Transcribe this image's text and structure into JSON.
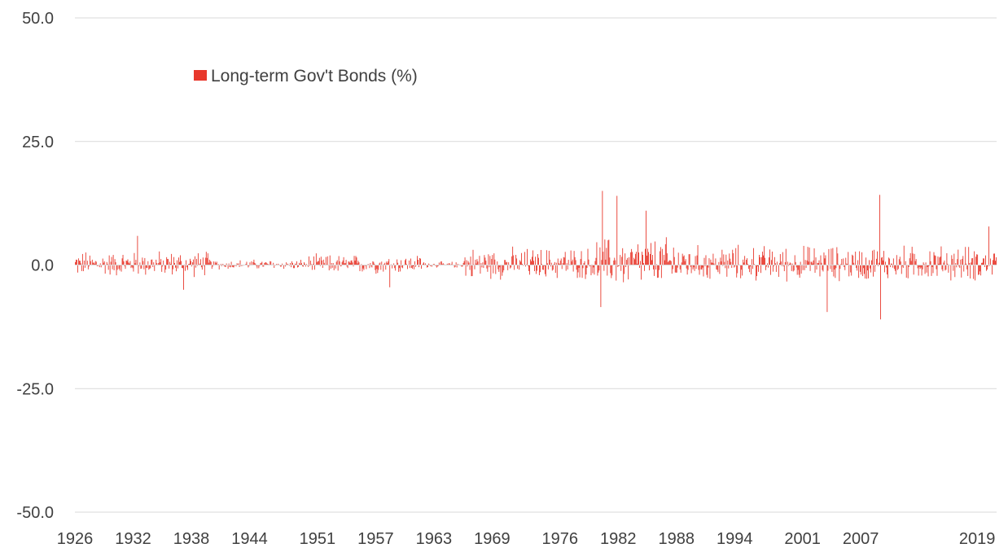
{
  "chart_data": {
    "type": "bar",
    "title": "",
    "xlabel": "",
    "ylabel": "",
    "ylim": [
      -50,
      50
    ],
    "y_ticks": [
      "50.0",
      "25.0",
      "0.0",
      "-25.0",
      "-50.0"
    ],
    "y_tick_values": [
      50,
      25,
      0,
      -25,
      -50
    ],
    "x_range": [
      1926,
      2021
    ],
    "x_ticks": [
      "1926",
      "1932",
      "1938",
      "1944",
      "1951",
      "1957",
      "1963",
      "1969",
      "1976",
      "1982",
      "1988",
      "1994",
      "2001",
      "2007",
      "2019"
    ],
    "x_tick_values": [
      1926,
      1932,
      1938,
      1944,
      1951,
      1957,
      1963,
      1969,
      1976,
      1982,
      1988,
      1994,
      2001,
      2007,
      2019
    ],
    "grid": true,
    "legend_position": "top-left",
    "bar_color": "#e8382c",
    "series": [
      {
        "name": "Long-term Gov't Bonds (%)",
        "frequency": "monthly",
        "start": "1926-01",
        "notable_values": [
          {
            "date": "1932-06",
            "value": 5.9
          },
          {
            "date": "1937-03",
            "value": -5.0
          },
          {
            "date": "1958-06",
            "value": -4.5
          },
          {
            "date": "1980-03",
            "value": -8.5
          },
          {
            "date": "1980-05",
            "value": 15.0
          },
          {
            "date": "1981-11",
            "value": 14.0
          },
          {
            "date": "1984-11",
            "value": 11.0
          },
          {
            "date": "2003-07",
            "value": -9.5
          },
          {
            "date": "2008-12",
            "value": 14.2
          },
          {
            "date": "2009-01",
            "value": -11.0
          },
          {
            "date": "2020-03",
            "value": 7.8
          }
        ],
        "volatility_regimes": [
          {
            "from": 1926,
            "to": 1940,
            "typical_amplitude": 2.0
          },
          {
            "from": 1940,
            "to": 1950,
            "typical_amplitude": 0.8
          },
          {
            "from": 1950,
            "to": 1962,
            "typical_amplitude": 1.5
          },
          {
            "from": 1962,
            "to": 1966,
            "typical_amplitude": 0.5
          },
          {
            "from": 1966,
            "to": 1979,
            "typical_amplitude": 2.5
          },
          {
            "from": 1979,
            "to": 1989,
            "typical_amplitude": 4.0
          },
          {
            "from": 1989,
            "to": 2021,
            "typical_amplitude": 2.8
          }
        ]
      }
    ]
  }
}
